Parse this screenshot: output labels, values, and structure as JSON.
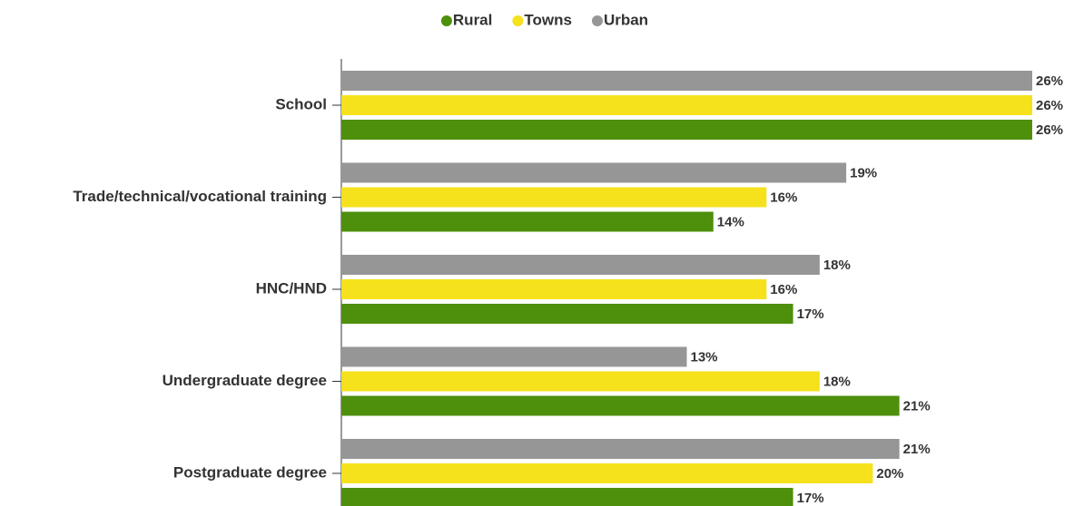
{
  "chart_data": {
    "type": "bar",
    "orientation": "horizontal",
    "categories": [
      "School",
      "Trade/technical/vocational training",
      "HNC/HND",
      "Undergraduate degree",
      "Postgraduate degree"
    ],
    "series": [
      {
        "name": "Rural",
        "color": "#4e8f0c",
        "values": [
          26,
          14,
          17,
          21,
          17
        ],
        "value_labels": [
          "26%",
          "14%",
          "17%",
          "21%",
          "17%"
        ]
      },
      {
        "name": "Towns",
        "color": "#f5e11c",
        "values": [
          26,
          16,
          16,
          18,
          20
        ],
        "value_labels": [
          "26%",
          "16%",
          "16%",
          "18%",
          "20%"
        ]
      },
      {
        "name": "Urban",
        "color": "#969696",
        "values": [
          26,
          19,
          18,
          13,
          21
        ],
        "value_labels": [
          "26%",
          "19%",
          "18%",
          "13%",
          "21%"
        ]
      }
    ],
    "xlim": [
      0,
      26
    ],
    "legend": "top"
  }
}
